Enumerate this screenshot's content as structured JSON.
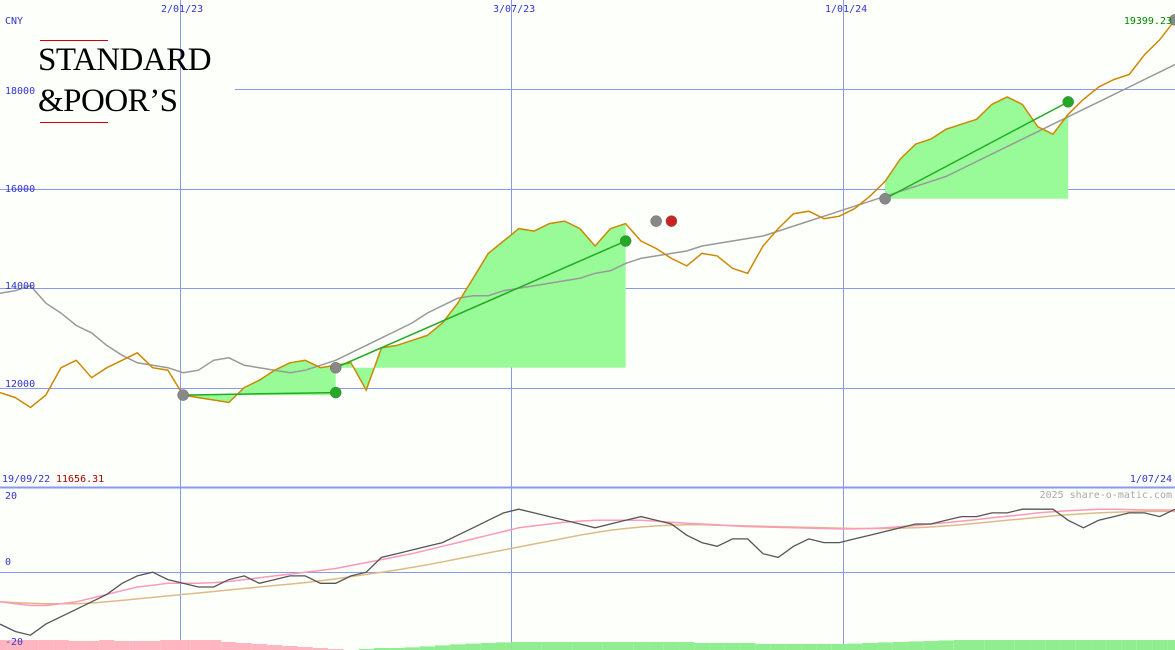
{
  "currency": "CNY",
  "brand_logo": {
    "line1": "STANDARD",
    "line2": "&POOR’S"
  },
  "last_value_label": "19399.23",
  "start_label": {
    "date": "19/09/22",
    "value": "11656.31"
  },
  "end_date_label": "1/07/24",
  "watermark": "2025 share-o-matic.com",
  "colors": {
    "price": "#cc8800",
    "moving_average": "#999999",
    "grid": "#8899ee",
    "trade_fill": "#98fb98",
    "trade_line": "#22aa22",
    "buy_marker": "#888888",
    "sell_marker": "#22aa22",
    "exit_marker": "#cc2222",
    "osc_fast": "#555555",
    "osc_signal": "#ff99bb",
    "osc_slow": "#ddbb88",
    "hist_neg": "#ffb6c1",
    "hist_pos": "#90ee90"
  },
  "chart_data": [
    {
      "type": "line",
      "ylabel": "CNY",
      "ylim": [
        10000,
        19800
      ],
      "y_ticks": [
        12000,
        14000,
        16000,
        18000
      ],
      "x_range": [
        "19/09/22",
        "1/07/24"
      ],
      "x_ticks": [
        "2/01/23",
        "3/07/23",
        "1/01/24"
      ],
      "grid": true,
      "series": [
        {
          "values": [
            11900,
            11800,
            11600,
            11850,
            12400,
            12550,
            12200,
            12400,
            12550,
            12700,
            12400,
            12350,
            11850,
            11800,
            11750,
            11700,
            12000,
            12150,
            12350,
            12500,
            12550,
            12400,
            12450,
            12500,
            11950,
            12800,
            12850,
            12950,
            13050,
            13300,
            13700,
            14200,
            14700,
            14950,
            15200,
            15150,
            15300,
            15350,
            15200,
            14850,
            15200,
            15300,
            14950,
            14800,
            14600,
            14450,
            14700,
            14650,
            14400,
            14300,
            14850,
            15200,
            15500,
            15550,
            15400,
            15450,
            15600,
            15850,
            16150,
            16600,
            16900,
            17000,
            17200,
            17300,
            17400,
            17700,
            17850,
            17700,
            17250,
            17100,
            17500,
            17800,
            18050,
            18200,
            18300,
            18700,
            19000,
            19399.23
          ]
        },
        {
          "values": [
            13900,
            13950,
            14050,
            13700,
            13500,
            13250,
            13100,
            12850,
            12650,
            12500,
            12450,
            12400,
            12300,
            12350,
            12550,
            12600,
            12450,
            12400,
            12350,
            12300,
            12350,
            12450,
            12550,
            12700,
            12850,
            13000,
            13150,
            13300,
            13500,
            13650,
            13800,
            13850,
            13850,
            13950,
            14000,
            14050,
            14100,
            14150,
            14200,
            14300,
            14350,
            14500,
            14600,
            14650,
            14700,
            14750,
            14850,
            14900,
            14950,
            15000,
            15050,
            15150,
            15250,
            15350,
            15450,
            15550,
            15650,
            15750,
            15850,
            15950,
            16050,
            16150,
            16250,
            16400,
            16550,
            16700,
            16850,
            17000,
            17150,
            17300,
            17450,
            17600,
            17750,
            17900,
            18050,
            18200,
            18350,
            18500
          ]
        }
      ],
      "trades": [
        {
          "entry_index": 12,
          "entry": 11850,
          "exit_index": 22,
          "exit": 11900
        },
        {
          "entry_index": 22,
          "entry": 12400,
          "exit_index": 41,
          "exit": 14950
        },
        {
          "entry_index": 58,
          "entry": 15800,
          "exit_index": 70,
          "exit": 17750
        }
      ],
      "markers": [
        {
          "index": 12,
          "value": 11850,
          "kind": "buy"
        },
        {
          "index": 22,
          "value": 11900,
          "kind": "sell"
        },
        {
          "index": 22,
          "value": 12400,
          "kind": "buy"
        },
        {
          "index": 41,
          "value": 14950,
          "kind": "sell"
        },
        {
          "index": 43,
          "value": 15350,
          "kind": "buy"
        },
        {
          "index": 44,
          "value": 15350,
          "kind": "exit"
        },
        {
          "index": 58,
          "value": 15800,
          "kind": "buy"
        },
        {
          "index": 70,
          "value": 17750,
          "kind": "sell"
        },
        {
          "index": 77,
          "value": 19399.23,
          "kind": "buy"
        }
      ]
    },
    {
      "type": "line",
      "ylim": [
        -21,
        23
      ],
      "y_ticks": [
        -20,
        0,
        20
      ],
      "grid": true,
      "series": [
        {
          "values": [
            -14,
            -16,
            -17,
            -14,
            -12,
            -10,
            -8,
            -6,
            -3,
            -1,
            0,
            -2,
            -3,
            -4,
            -4,
            -2,
            -1,
            -3,
            -2,
            -1,
            -1,
            -3,
            -3,
            -1,
            0,
            4,
            5,
            6,
            7,
            8,
            10,
            12,
            14,
            16,
            17,
            16,
            15,
            14,
            13,
            12,
            13,
            14,
            15,
            14,
            13,
            10,
            8,
            7,
            9,
            9,
            5,
            4,
            7,
            9,
            8,
            8,
            9,
            10,
            11,
            12,
            13,
            13,
            14,
            15,
            15,
            16,
            16,
            17,
            17,
            17,
            14,
            12,
            14,
            15,
            16,
            16,
            15,
            17
          ]
        },
        {
          "values": [
            -8,
            -8.5,
            -9,
            -9,
            -8.5,
            -8,
            -7,
            -6,
            -5,
            -4,
            -3.5,
            -3,
            -3,
            -3,
            -2.8,
            -2.5,
            -2,
            -1.5,
            -1,
            -0.5,
            0,
            0.5,
            1,
            1.8,
            2.6,
            3.4,
            4.2,
            5,
            6,
            7,
            8,
            9,
            10,
            11,
            12,
            12.5,
            13,
            13.5,
            13.8,
            14,
            14,
            14,
            14,
            13.8,
            13.5,
            13.2,
            13,
            12.8,
            12.5,
            12.3,
            12.2,
            12.1,
            12,
            11.9,
            11.8,
            11.7,
            11.7,
            11.8,
            12,
            12.3,
            12.6,
            13,
            13.4,
            13.8,
            14.2,
            14.7,
            15.1,
            15.5,
            16,
            16.3,
            16.6,
            16.8,
            17,
            17,
            16.9,
            16.8,
            16.8,
            16.7
          ]
        },
        {
          "values": [
            -8,
            -8.2,
            -8.4,
            -8.5,
            -8.5,
            -8.5,
            -8.3,
            -8,
            -7.6,
            -7.2,
            -6.8,
            -6.4,
            -6,
            -5.6,
            -5.2,
            -4.8,
            -4.4,
            -4,
            -3.6,
            -3.2,
            -2.8,
            -2.3,
            -1.8,
            -1.2,
            -0.6,
            0,
            0.6,
            1.3,
            2,
            2.8,
            3.6,
            4.4,
            5.2,
            6,
            6.8,
            7.6,
            8.4,
            9.2,
            10,
            10.7,
            11.3,
            11.8,
            12.2,
            12.5,
            12.7,
            12.8,
            12.8,
            12.7,
            12.6,
            12.5,
            12.4,
            12.3,
            12.2,
            12.1,
            12,
            11.9,
            11.8,
            11.8,
            11.8,
            11.9,
            12,
            12.2,
            12.5,
            12.8,
            13.2,
            13.6,
            14,
            14.4,
            14.8,
            15.2,
            15.5,
            15.8,
            16,
            16.2,
            16.3,
            16.4,
            16.4,
            16.4
          ]
        }
      ],
      "histogram": [
        -5,
        -5,
        -5,
        -5,
        -5,
        -4.5,
        -4.5,
        -5,
        -4.5,
        -4.5,
        -4.5,
        -5,
        -5,
        -5,
        -5,
        -4,
        -3.5,
        -3,
        -2.5,
        -2,
        -1.5,
        -1,
        -0.5,
        0,
        0.5,
        1,
        1,
        1.3,
        1.8,
        2.3,
        2.8,
        3.2,
        3.5,
        3.8,
        4,
        4,
        4,
        4,
        4,
        4,
        4,
        4,
        4,
        4,
        4,
        4,
        3.5,
        3.5,
        3.5,
        3.5,
        3,
        3,
        3,
        3,
        3,
        3,
        3.2,
        3.5,
        3.8,
        4,
        4.3,
        4.5,
        4.8,
        5,
        5,
        5,
        5,
        5,
        5,
        5,
        5,
        5,
        5,
        5,
        5,
        5,
        5,
        5
      ]
    }
  ]
}
